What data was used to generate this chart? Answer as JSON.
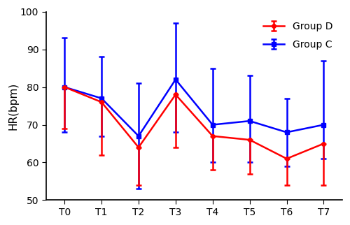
{
  "x_labels": [
    "T0",
    "T1",
    "T2",
    "T3",
    "T4",
    "T5",
    "T6",
    "T7"
  ],
  "group_d_mean": [
    80,
    76,
    64,
    78,
    67,
    66,
    61,
    65
  ],
  "group_d_err_low": [
    11,
    14,
    10,
    14,
    9,
    9,
    7,
    11
  ],
  "group_d_err_high": [
    0,
    0,
    0,
    0,
    0,
    0,
    0,
    0
  ],
  "group_c_mean": [
    80,
    77,
    67,
    82,
    70,
    71,
    68,
    70
  ],
  "group_c_err_low": [
    12,
    10,
    14,
    14,
    10,
    11,
    9,
    9
  ],
  "group_c_err_high": [
    13,
    11,
    14,
    15,
    15,
    12,
    9,
    17
  ],
  "group_d_color": "#ff0000",
  "group_c_color": "#0000ff",
  "ylabel": "HR(bpm)",
  "ylim": [
    50,
    100
  ],
  "yticks": [
    50,
    60,
    70,
    80,
    90,
    100
  ],
  "legend_group_d": "Group D",
  "legend_group_c": "Group C"
}
